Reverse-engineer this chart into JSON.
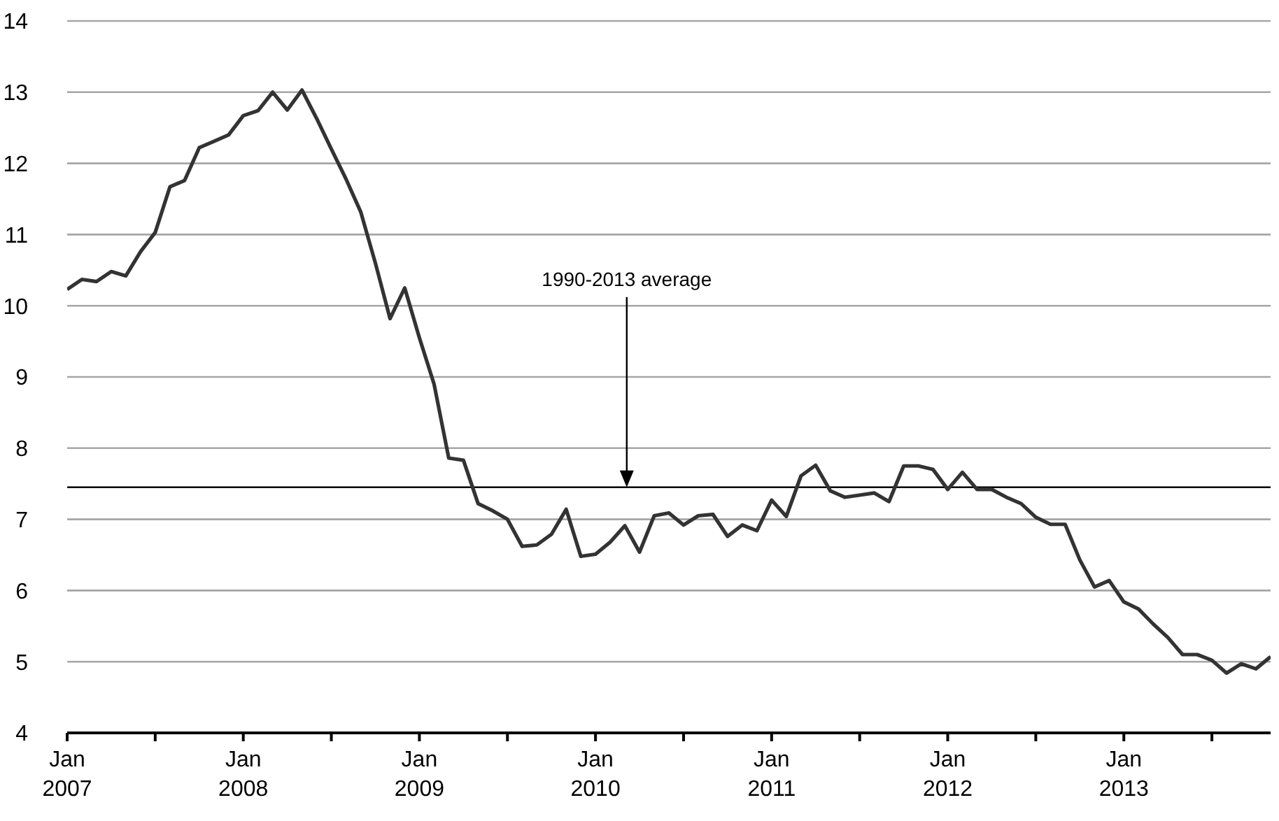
{
  "chart_data": {
    "type": "line",
    "x": [
      "2007-01",
      "2007-02",
      "2007-03",
      "2007-04",
      "2007-05",
      "2007-06",
      "2007-07",
      "2007-08",
      "2007-09",
      "2007-10",
      "2007-11",
      "2007-12",
      "2008-01",
      "2008-02",
      "2008-03",
      "2008-04",
      "2008-05",
      "2008-06",
      "2008-07",
      "2008-08",
      "2008-09",
      "2008-10",
      "2008-11",
      "2008-12",
      "2009-01",
      "2009-02",
      "2009-03",
      "2009-04",
      "2009-05",
      "2009-06",
      "2009-07",
      "2009-08",
      "2009-09",
      "2009-10",
      "2009-11",
      "2009-12",
      "2010-01",
      "2010-02",
      "2010-03",
      "2010-04",
      "2010-05",
      "2010-06",
      "2010-07",
      "2010-08",
      "2010-09",
      "2010-10",
      "2010-11",
      "2010-12",
      "2011-01",
      "2011-02",
      "2011-03",
      "2011-04",
      "2011-05",
      "2011-06",
      "2011-07",
      "2011-08",
      "2011-09",
      "2011-10",
      "2011-11",
      "2011-12",
      "2012-01",
      "2012-02",
      "2012-03",
      "2012-04",
      "2012-05",
      "2012-06",
      "2012-07",
      "2012-08",
      "2012-09",
      "2012-10",
      "2012-11",
      "2012-12",
      "2013-01",
      "2013-02",
      "2013-03",
      "2013-04",
      "2013-05",
      "2013-06",
      "2013-07",
      "2013-08",
      "2013-09",
      "2013-10",
      "2013-11"
    ],
    "series": [
      {
        "color": "#333333",
        "values": [
          10.23,
          10.37,
          10.34,
          10.48,
          10.42,
          10.76,
          11.03,
          11.67,
          11.76,
          12.22,
          12.31,
          12.4,
          12.67,
          12.74,
          13.0,
          12.75,
          13.03,
          12.63,
          12.2,
          11.78,
          11.32,
          10.6,
          9.82,
          10.25,
          9.55,
          8.9,
          7.86,
          7.83,
          7.22,
          7.12,
          7.0,
          6.62,
          6.64,
          6.79,
          7.14,
          6.48,
          6.51,
          6.68,
          6.91,
          6.54,
          7.05,
          7.09,
          6.92,
          7.05,
          7.07,
          6.76,
          6.92,
          6.84,
          7.27,
          7.04,
          7.61,
          7.76,
          7.4,
          7.31,
          7.34,
          7.37,
          7.25,
          7.75,
          7.75,
          7.7,
          7.42,
          7.66,
          7.42,
          7.42,
          7.31,
          7.22,
          7.03,
          6.93,
          6.93,
          6.43,
          6.05,
          6.14,
          5.84,
          5.74,
          5.53,
          5.34,
          5.1,
          5.1,
          5.02,
          4.84,
          4.97,
          4.9,
          5.07
        ]
      }
    ],
    "xlim": [
      "2007-01",
      "2013-11"
    ],
    "xticks": [
      {
        "value": "2007-01",
        "label": "Jan 2007"
      },
      {
        "value": "2007-07",
        "label": null
      },
      {
        "value": "2008-01",
        "label": "Jan 2008"
      },
      {
        "value": "2008-07",
        "label": null
      },
      {
        "value": "2009-01",
        "label": "Jan 2009"
      },
      {
        "value": "2009-07",
        "label": null
      },
      {
        "value": "2010-01",
        "label": "Jan 2010"
      },
      {
        "value": "2010-07",
        "label": null
      },
      {
        "value": "2011-01",
        "label": "Jan 2011"
      },
      {
        "value": "2011-07",
        "label": null
      },
      {
        "value": "2012-01",
        "label": "Jan 2012"
      },
      {
        "value": "2012-07",
        "label": null
      },
      {
        "value": "2013-01",
        "label": "Jan 2013"
      },
      {
        "value": "2013-07",
        "label": null
      }
    ],
    "ylim": [
      4,
      14
    ],
    "yticks": [
      4,
      5,
      6,
      7,
      8,
      9,
      10,
      11,
      12,
      13,
      14
    ],
    "grid": "y",
    "marker": "none",
    "line_style": "solid",
    "ref_lines": [
      {
        "axis": "y",
        "value": 7.45,
        "label": "1990-2013 average",
        "color": "#000000"
      }
    ]
  }
}
